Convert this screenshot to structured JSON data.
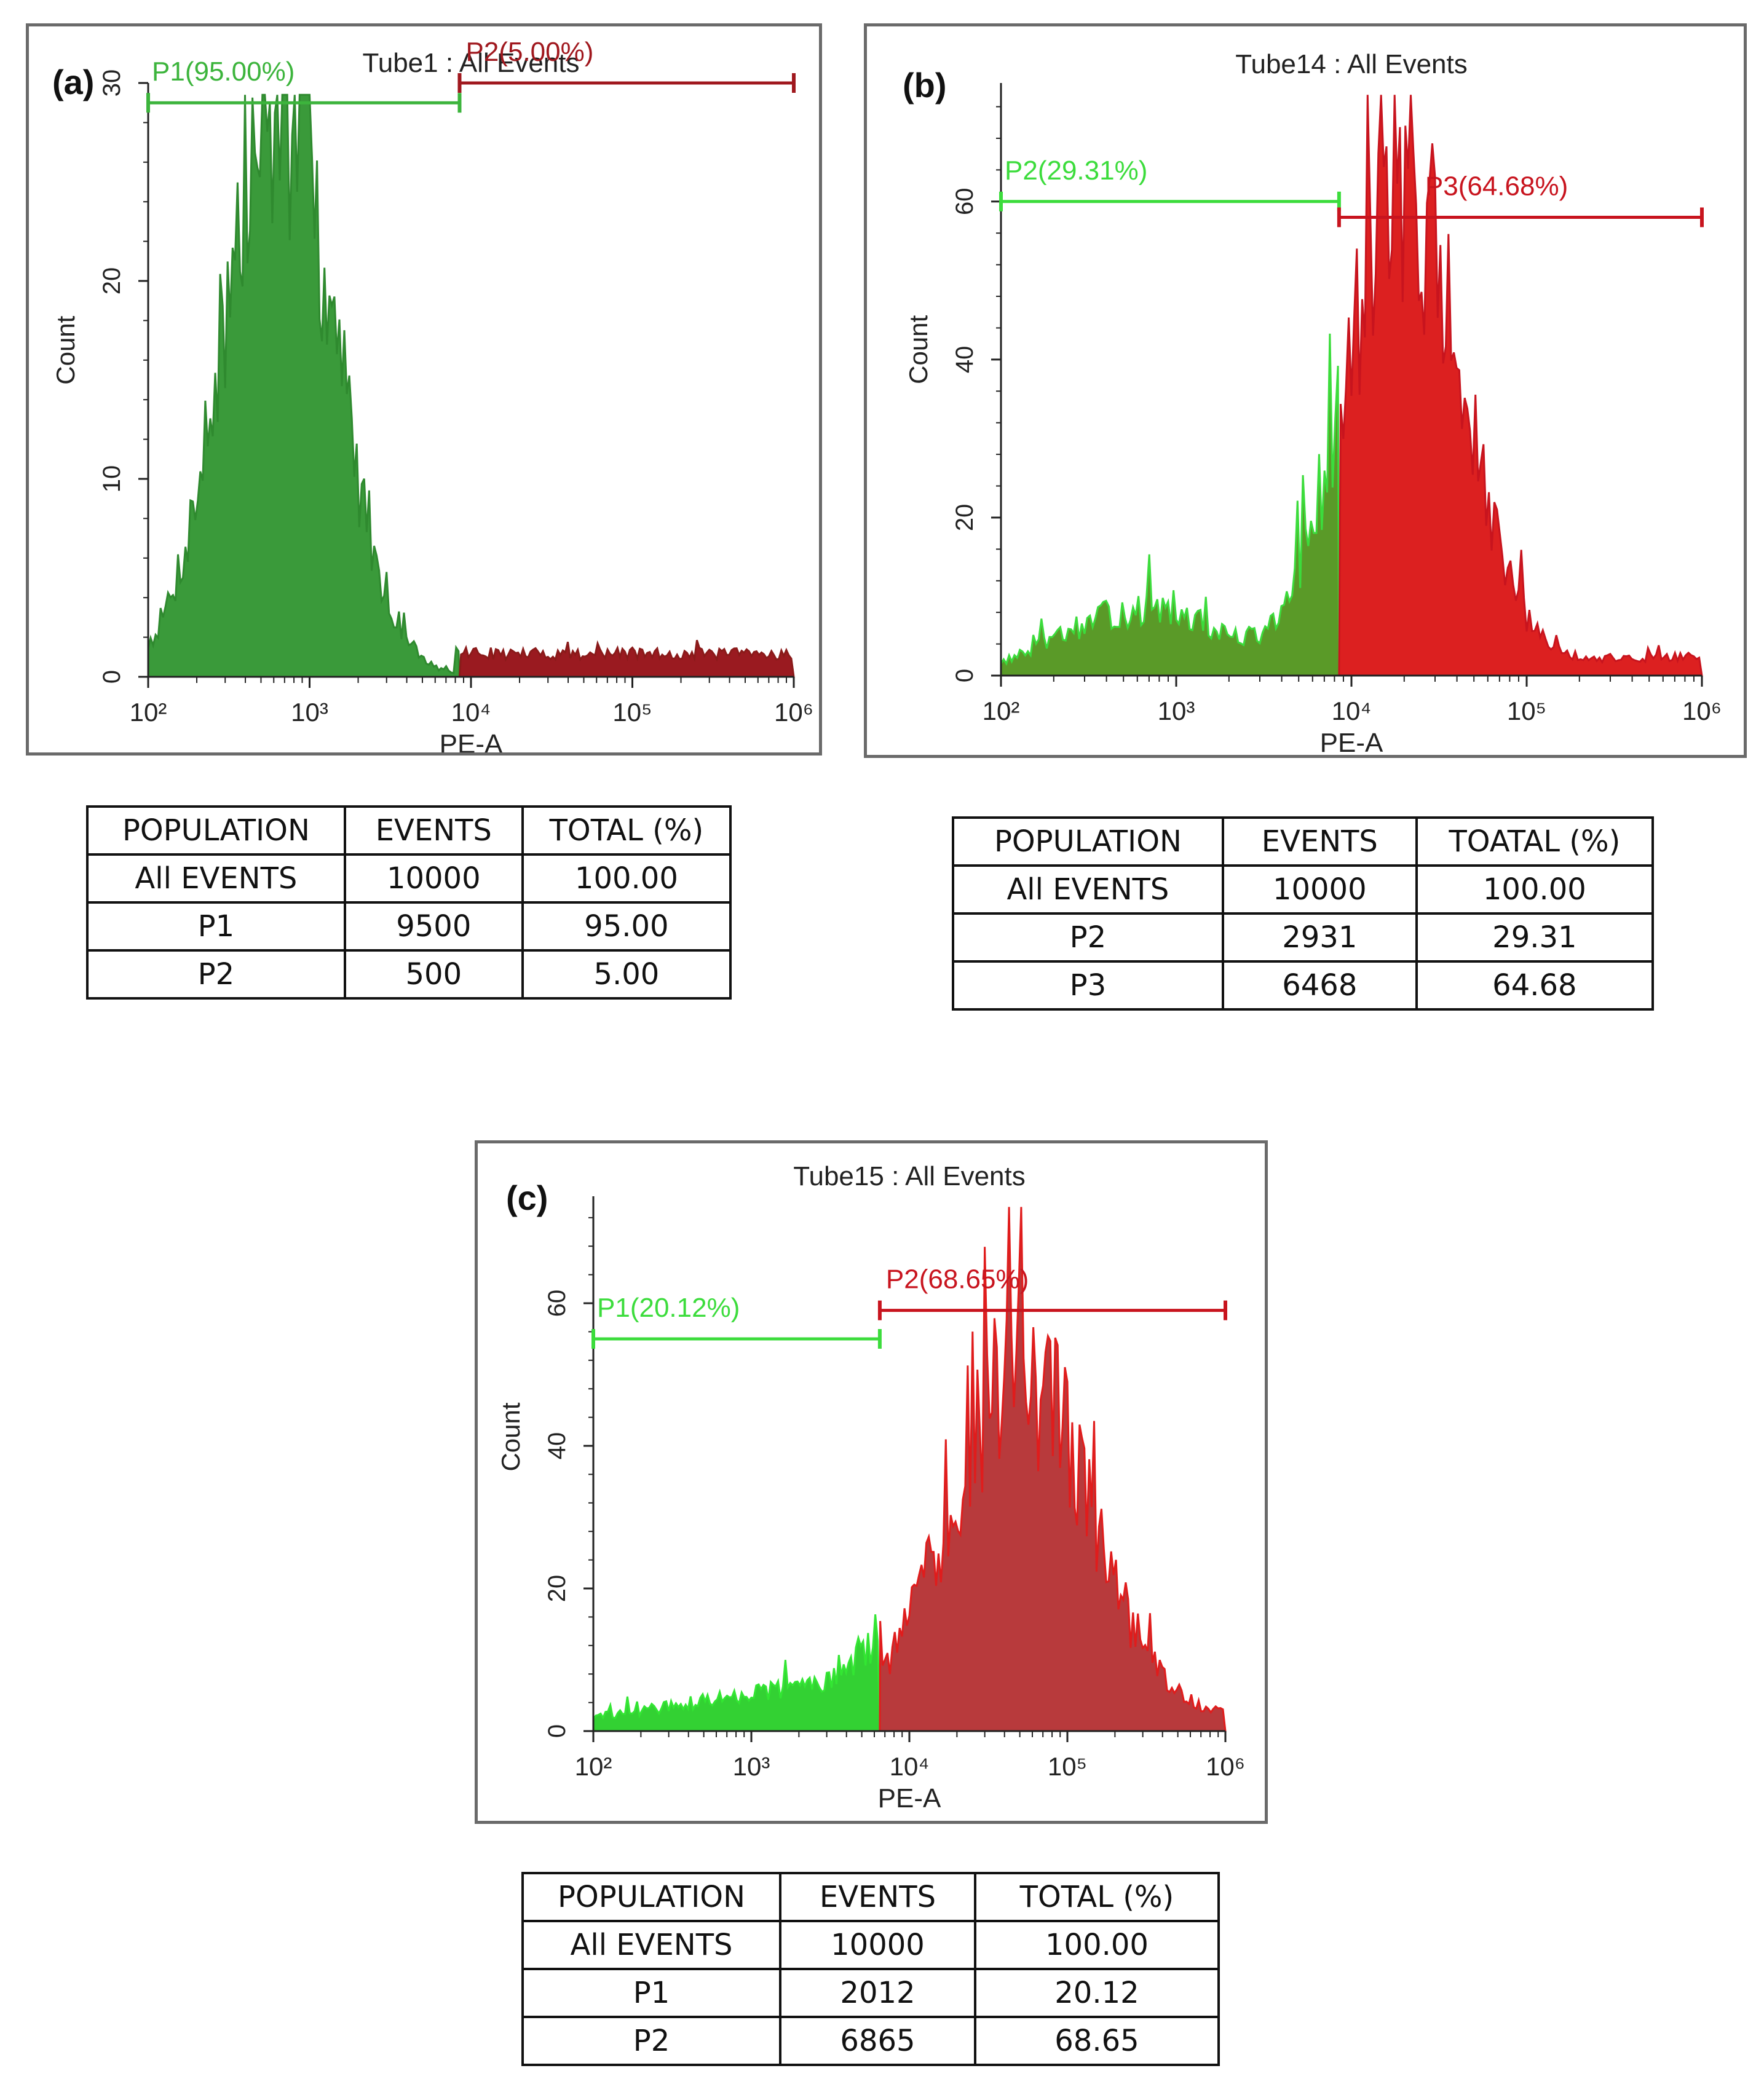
{
  "chart_data": [
    {
      "type": "histogram",
      "panel": "(a)",
      "title": "Tube1 : All Events",
      "xlabel": "PE-A",
      "ylabel": "Count",
      "xscale": "log",
      "xlim": [
        100,
        1000000
      ],
      "ylim": [
        0,
        30
      ],
      "yticks": [
        0,
        10,
        20,
        30
      ],
      "xticks": [
        "10²",
        "10³",
        "10⁴",
        "10⁵",
        "10⁶"
      ],
      "peak": {
        "x": 650,
        "y": 30
      },
      "spread": 0.34,
      "gate_split_x": 8500,
      "noise_seed": 7,
      "gates": [
        {
          "name": "P1",
          "label": "P1(95.00%)",
          "from": 100,
          "to": 8500,
          "y": 29,
          "color": "#3cb43c"
        },
        {
          "name": "P2",
          "label": "P2(5.00%)",
          "from": 8500,
          "to": 1000000,
          "y": 30,
          "color": "#a0181e"
        }
      ],
      "fill_colors": {
        "left": "#3a9a3a",
        "right": "#9a1a20"
      },
      "outline_colors": {
        "left": "#2f8a2f",
        "right": "#8a1a1a"
      }
    },
    {
      "type": "histogram",
      "panel": "(b)",
      "title": "Tube14 : All Events",
      "xlabel": "PE-A",
      "ylabel": "Count",
      "xscale": "log",
      "xlim": [
        100,
        1000000
      ],
      "ylim": [
        0,
        75
      ],
      "yticks": [
        0,
        20,
        40,
        60
      ],
      "xticks": [
        "10²",
        "10³",
        "10⁴",
        "10⁵",
        "10⁶"
      ],
      "peak": {
        "x": 20000,
        "y": 62
      },
      "spread": 0.32,
      "shoulder": {
        "x": 600,
        "y": 8
      },
      "gate_split_x": 8500,
      "noise_seed": 13,
      "gates": [
        {
          "name": "P2",
          "label": "P2(29.31%)",
          "from": 100,
          "to": 8500,
          "y": 60,
          "color": "#3cdc3c"
        },
        {
          "name": "P3",
          "label": "P3(64.68%)",
          "from": 8500,
          "to": 1000000,
          "y": 58,
          "color": "#c8141e"
        }
      ],
      "fill_colors": {
        "left": "#5a9a28",
        "right": "#dc2020"
      },
      "outline_colors": {
        "left": "#3cdc3c",
        "right": "#c8141e"
      }
    },
    {
      "type": "histogram",
      "panel": "(c)",
      "title": "Tube15 : All Events",
      "xlabel": "PE-A",
      "ylabel": "Count",
      "xscale": "log",
      "xlim": [
        100,
        1000000
      ],
      "ylim": [
        0,
        75
      ],
      "yticks": [
        0,
        20,
        40,
        60
      ],
      "xticks": [
        "10²",
        "10³",
        "10⁴",
        "10⁵",
        "10⁶"
      ],
      "peak": {
        "x": 50000,
        "y": 50
      },
      "spread": 0.44,
      "gate_split_x": 6500,
      "noise_seed": 29,
      "gates": [
        {
          "name": "P1",
          "label": "P1(20.12%)",
          "from": 100,
          "to": 6500,
          "y": 55,
          "color": "#3cdc3c"
        },
        {
          "name": "P2",
          "label": "P2(68.65%)",
          "from": 6500,
          "to": 1000000,
          "y": 59,
          "color": "#c8141e"
        }
      ],
      "fill_colors": {
        "left": "#33d133",
        "right": "#b83a3c"
      },
      "outline_colors": {
        "left": "#33e633",
        "right": "#e01c1c"
      }
    }
  ],
  "tables": [
    {
      "headers": [
        "POPULATION",
        "EVENTS",
        "TOTAL (%)"
      ],
      "rows": [
        [
          "All EVENTS",
          "10000",
          "100.00"
        ],
        [
          "P1",
          "9500",
          "95.00"
        ],
        [
          "P2",
          "500",
          "5.00"
        ]
      ]
    },
    {
      "headers": [
        "POPULATION",
        "EVENTS",
        "TOATAL (%)"
      ],
      "rows": [
        [
          "All EVENTS",
          "10000",
          "100.00"
        ],
        [
          "P2",
          "2931",
          "29.31"
        ],
        [
          "P3",
          "6468",
          "64.68"
        ]
      ]
    },
    {
      "headers": [
        "POPULATION",
        "EVENTS",
        "TOTAL (%)"
      ],
      "rows": [
        [
          "All EVENTS",
          "10000",
          "100.00"
        ],
        [
          "P1",
          "2012",
          "20.12"
        ],
        [
          "P2",
          "6865",
          "68.65"
        ]
      ]
    }
  ]
}
